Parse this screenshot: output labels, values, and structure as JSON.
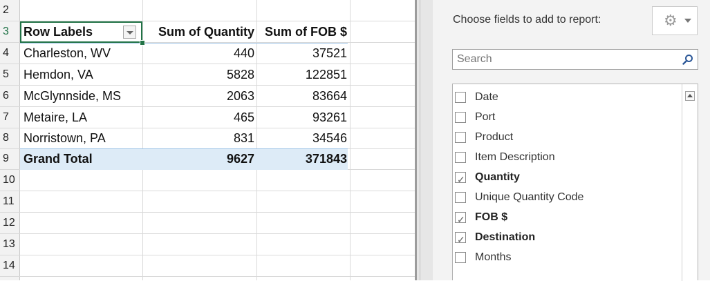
{
  "sheet": {
    "row_numbers": [
      "2",
      "3",
      "4",
      "5",
      "6",
      "7",
      "8",
      "9",
      "10",
      "11",
      "12",
      "13",
      "14"
    ],
    "header": {
      "row_labels": "Row Labels",
      "sum_quantity": "Sum of Quantity",
      "sum_fob": "Sum of FOB $"
    },
    "rows": [
      {
        "label": "Charleston, WV",
        "quantity": "440",
        "fob": "37521"
      },
      {
        "label": "Hemdon, VA",
        "quantity": "5828",
        "fob": "122851"
      },
      {
        "label": "McGlynnside, MS",
        "quantity": "2063",
        "fob": "83664"
      },
      {
        "label": "Metaire, LA",
        "quantity": "465",
        "fob": "93261"
      },
      {
        "label": "Norristown, PA",
        "quantity": "831",
        "fob": "34546"
      }
    ],
    "total": {
      "label": "Grand Total",
      "quantity": "9627",
      "fob": "371843"
    }
  },
  "pane": {
    "choose_label": "Choose fields to add to report:",
    "tools_icon": "gear-icon",
    "search_placeholder": "Search",
    "fields": [
      {
        "name": "Date",
        "checked": false
      },
      {
        "name": "Port",
        "checked": false
      },
      {
        "name": "Product",
        "checked": false
      },
      {
        "name": "Item Description",
        "checked": false
      },
      {
        "name": "Quantity",
        "checked": true
      },
      {
        "name": "Unique Quantity Code",
        "checked": false
      },
      {
        "name": "FOB $",
        "checked": true
      },
      {
        "name": "Destination",
        "checked": true
      },
      {
        "name": "Months",
        "checked": false
      }
    ]
  },
  "colors": {
    "accent": "#217346",
    "total_fill": "#ddebf7",
    "pane_bg": "#f3f3f3"
  }
}
